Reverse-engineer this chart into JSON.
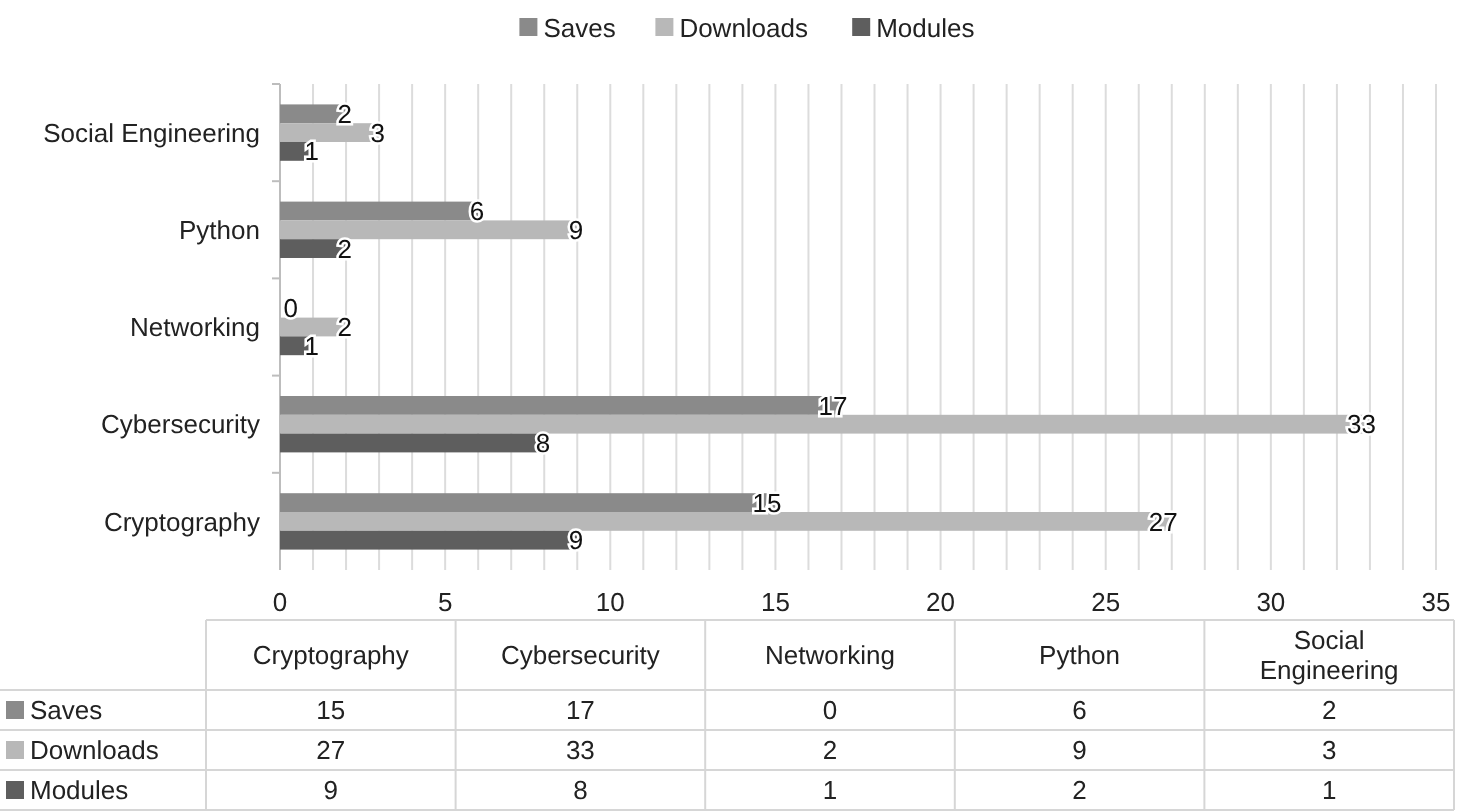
{
  "chart_data": [
    {
      "type": "bar",
      "orientation": "horizontal",
      "categories": [
        "Social Engineering",
        "Python",
        "Networking",
        "Cybersecurity",
        "Cryptography"
      ],
      "series": [
        {
          "name": "Saves",
          "color": "#8a8a8a",
          "values": [
            2,
            6,
            0,
            17,
            15
          ]
        },
        {
          "name": "Downloads",
          "color": "#b8b8b8",
          "values": [
            3,
            9,
            2,
            33,
            27
          ]
        },
        {
          "name": "Modules",
          "color": "#5e5e5e",
          "values": [
            1,
            2,
            1,
            8,
            9
          ]
        }
      ],
      "xlim": [
        0,
        35
      ],
      "xticks": [
        0,
        {
          "value": 1,
          "label": null
        },
        {
          "value": 2,
          "label": null
        },
        {
          "value": 3,
          "label": null
        },
        {
          "value": 4,
          "label": null
        },
        5,
        {
          "value": 6,
          "label": null
        },
        {
          "value": 7,
          "label": null
        },
        {
          "value": 8,
          "label": null
        },
        {
          "value": 9,
          "label": null
        },
        10,
        {
          "value": 11,
          "label": null
        },
        {
          "value": 12,
          "label": null
        },
        {
          "value": 13,
          "label": null
        },
        {
          "value": 14,
          "label": null
        },
        15,
        {
          "value": 16,
          "label": null
        },
        {
          "value": 17,
          "label": null
        },
        {
          "value": 18,
          "label": null
        },
        {
          "value": 19,
          "label": null
        },
        20,
        {
          "value": 21,
          "label": null
        },
        {
          "value": 22,
          "label": null
        },
        {
          "value": 23,
          "label": null
        },
        {
          "value": 24,
          "label": null
        },
        25,
        {
          "value": 26,
          "label": null
        },
        {
          "value": 27,
          "label": null
        },
        {
          "value": 28,
          "label": null
        },
        {
          "value": 29,
          "label": null
        },
        30,
        {
          "value": 31,
          "label": null
        },
        {
          "value": 32,
          "label": null
        },
        {
          "value": 33,
          "label": null
        },
        {
          "value": 34,
          "label": null
        },
        35
      ],
      "grid": "x",
      "legend": "top",
      "data_labels": true
    },
    {
      "type": "other",
      "data_labels": true,
      "categories": [
        "Cryptography",
        "Cybersecurity",
        "Networking",
        "Python",
        "Social Engineering"
      ],
      "series": [
        {
          "name": "Saves",
          "color": "#8a8a8a",
          "values": [
            15,
            17,
            0,
            6,
            2
          ]
        },
        {
          "name": "Downloads",
          "color": "#b8b8b8",
          "values": [
            27,
            33,
            2,
            9,
            3
          ]
        },
        {
          "name": "Modules",
          "color": "#5e5e5e",
          "values": [
            9,
            8,
            1,
            2,
            1
          ]
        }
      ]
    }
  ]
}
